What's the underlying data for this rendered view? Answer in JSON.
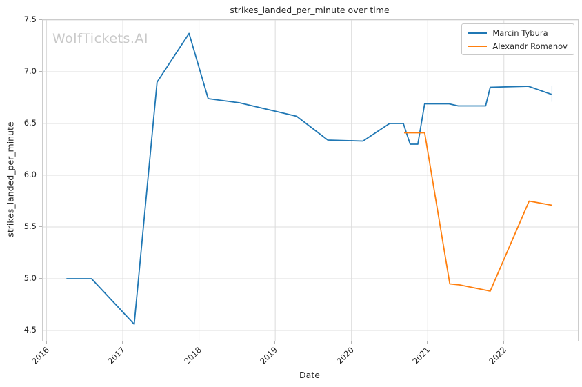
{
  "watermark": {
    "text": "WolfTickets.AI",
    "color": "#c9c9c9"
  },
  "chart_data": {
    "type": "line",
    "title": "strikes_landed_per_minute over time",
    "xlabel": "Date",
    "ylabel": "strikes_landed_per_minute",
    "xlim": [
      2015.95,
      2022.97
    ],
    "ylim": [
      4.4,
      7.5
    ],
    "x_ticks": [
      2016,
      2017,
      2018,
      2019,
      2020,
      2021,
      2022
    ],
    "y_ticks": [
      4.5,
      5.0,
      5.5,
      6.0,
      6.5,
      7.0,
      7.5
    ],
    "grid": true,
    "grid_color": "#dcdcdc",
    "legend_position": "upper right",
    "series": [
      {
        "name": "Marcin Tybura",
        "color": "#1f77b4",
        "points": [
          [
            2016.26,
            5.0
          ],
          [
            2016.59,
            5.0
          ],
          [
            2017.15,
            4.56
          ],
          [
            2017.45,
            6.9
          ],
          [
            2017.87,
            7.37
          ],
          [
            2018.12,
            6.74
          ],
          [
            2018.53,
            6.7
          ],
          [
            2019.28,
            6.57
          ],
          [
            2019.69,
            6.34
          ],
          [
            2020.15,
            6.33
          ],
          [
            2020.5,
            6.5
          ],
          [
            2020.68,
            6.5
          ],
          [
            2020.77,
            6.3
          ],
          [
            2020.87,
            6.3
          ],
          [
            2020.96,
            6.69
          ],
          [
            2021.28,
            6.69
          ],
          [
            2021.4,
            6.67
          ],
          [
            2021.76,
            6.67
          ],
          [
            2021.82,
            6.85
          ],
          [
            2022.32,
            6.86
          ],
          [
            2022.63,
            6.78
          ]
        ]
      },
      {
        "name": "Alexandr Romanov",
        "color": "#ff7f0e",
        "points": [
          [
            2020.69,
            6.41
          ],
          [
            2020.96,
            6.41
          ],
          [
            2021.29,
            4.95
          ],
          [
            2021.42,
            4.94
          ],
          [
            2021.82,
            4.88
          ],
          [
            2022.33,
            5.75
          ],
          [
            2022.63,
            5.71
          ]
        ]
      }
    ],
    "end_marker": {
      "x": 2022.63,
      "y_from": 6.71,
      "y_to": 6.86,
      "color": "#a9cbe3"
    }
  }
}
